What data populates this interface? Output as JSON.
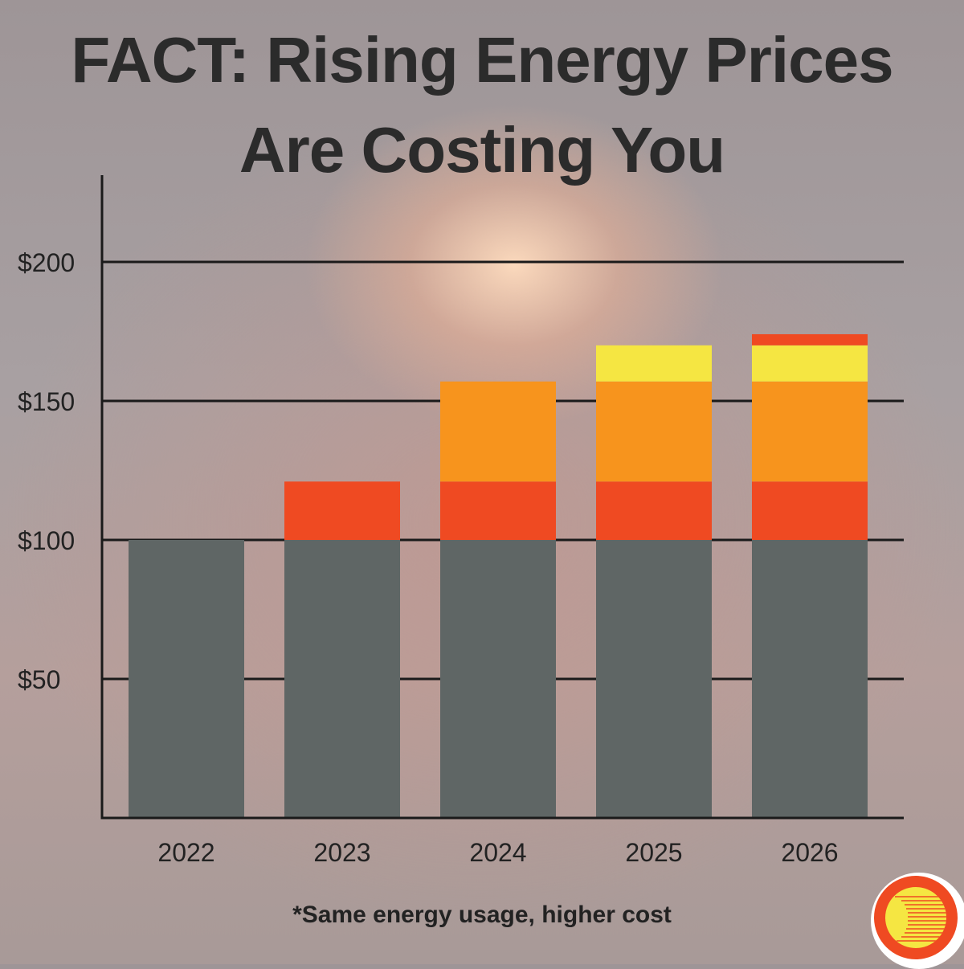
{
  "title_line1": "FACT: Rising Energy Prices",
  "title_line2": "Are Costing You",
  "footnote": "*Same energy usage, higher cost",
  "chart_data": {
    "type": "bar",
    "stacked": true,
    "categories": [
      "2022",
      "2023",
      "2024",
      "2025",
      "2026"
    ],
    "series": [
      {
        "name": "base",
        "color": "#5f6665",
        "values": [
          100,
          100,
          100,
          100,
          100
        ]
      },
      {
        "name": "increase-1",
        "color": "#ef4a22",
        "values": [
          0,
          21,
          21,
          21,
          21
        ]
      },
      {
        "name": "increase-2",
        "color": "#f7941d",
        "values": [
          0,
          0,
          36,
          36,
          36
        ]
      },
      {
        "name": "increase-3",
        "color": "#f5e642",
        "values": [
          0,
          0,
          0,
          13,
          13
        ]
      },
      {
        "name": "increase-4",
        "color": "#ef4a22",
        "values": [
          0,
          0,
          0,
          0,
          4
        ]
      }
    ],
    "yticks": [
      50,
      100,
      150,
      200
    ],
    "ytick_labels": [
      "$50",
      "$100",
      "$150",
      "$200"
    ],
    "ylim": [
      0,
      230
    ],
    "grid": true
  }
}
